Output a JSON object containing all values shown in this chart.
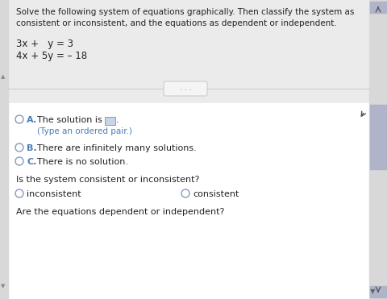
{
  "bg_color": "#ebebeb",
  "panel_bg": "#ffffff",
  "top_bg": "#ebebeb",
  "title_line1": "Solve the following system of equations graphically. Then classify the system as",
  "title_line2": "consistent or inconsistent, and the equations as dependent or independent.",
  "eq1": "3x +   y = 3",
  "eq2": "4x + 5y = – 18",
  "option_A_text": "The solution is",
  "option_A_sub": "(Type an ordered pair.)",
  "option_B_text": "There are infinitely many solutions.",
  "option_C_text": "There is no solution.",
  "question1": "Is the system consistent or inconsistent?",
  "radio1a": "inconsistent",
  "radio1b": "consistent",
  "question2": "Are the equations dependent or independent?",
  "left_strip_color": "#d8d8d8",
  "scrollbar_track": "#d8d8d8",
  "scrollbar_thumb": "#b0b4c8",
  "text_color": "#222222",
  "blue_label_color": "#4a7cb5",
  "radio_color": "#8899bb",
  "separator_color": "#cccccc",
  "box_bg": "#c8d4e8",
  "box_border": "#8899bb",
  "cursor_color": "#555566",
  "dots_text": ". . .",
  "dots_bg": "#f5f5f5",
  "dots_border": "#cccccc"
}
